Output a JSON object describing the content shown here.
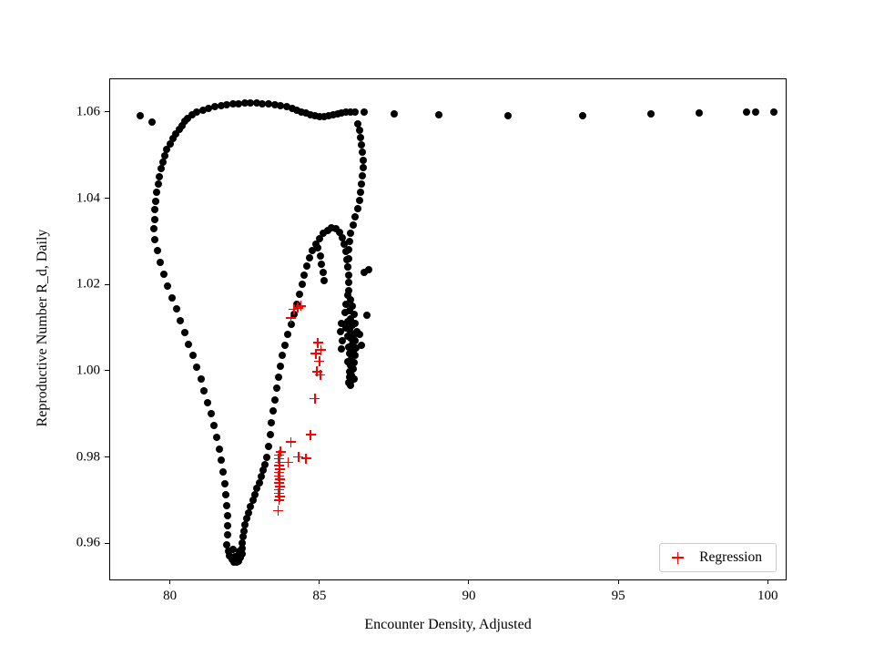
{
  "chart_data": {
    "type": "scatter",
    "title": "",
    "xlabel": "Encounter Density, Adjusted",
    "ylabel": "Reproductive Number R_d, Daily",
    "xlim": [
      78.0,
      100.6
    ],
    "ylim": [
      0.9516,
      1.0676
    ],
    "xticks": [
      80,
      85,
      90,
      95,
      100
    ],
    "yticks": [
      0.96,
      0.98,
      1.0,
      1.02,
      1.04,
      1.06
    ],
    "grid": false,
    "colors": {
      "observations": "#000000",
      "regression": "#ff0000"
    },
    "legend": {
      "position": "lower right",
      "entries": [
        {
          "label": "Regression",
          "marker": "plus",
          "color": "#ff0000"
        }
      ]
    },
    "series": [
      {
        "name": "observations",
        "marker": "circle",
        "color": "#000000",
        "in_legend": false,
        "points": [
          [
            100.2,
            1.0601
          ],
          [
            99.6,
            1.06
          ],
          [
            99.3,
            1.06
          ],
          [
            97.7,
            1.0597
          ],
          [
            96.1,
            1.0595
          ],
          [
            93.8,
            1.0592
          ],
          [
            91.3,
            1.0591
          ],
          [
            89.0,
            1.0593
          ],
          [
            87.5,
            1.0596
          ],
          [
            86.5,
            1.0599
          ],
          [
            86.2,
            1.0601
          ],
          [
            86.05,
            1.06
          ],
          [
            85.9,
            1.0599
          ],
          [
            85.75,
            1.0597
          ],
          [
            85.6,
            1.0595
          ],
          [
            85.45,
            1.0593
          ],
          [
            85.3,
            1.0591
          ],
          [
            85.15,
            1.059
          ],
          [
            85.0,
            1.0589
          ],
          [
            84.85,
            1.0591
          ],
          [
            84.7,
            1.0593
          ],
          [
            84.55,
            1.0597
          ],
          [
            84.4,
            1.0601
          ],
          [
            84.25,
            1.0605
          ],
          [
            84.1,
            1.0608
          ],
          [
            83.9,
            1.0612
          ],
          [
            83.7,
            1.0615
          ],
          [
            83.5,
            1.0617
          ],
          [
            83.3,
            1.0619
          ],
          [
            83.1,
            1.062
          ],
          [
            82.9,
            1.0621
          ],
          [
            82.7,
            1.0621
          ],
          [
            82.5,
            1.0621
          ],
          [
            82.3,
            1.062
          ],
          [
            82.1,
            1.0619
          ],
          [
            81.9,
            1.0617
          ],
          [
            81.7,
            1.0615
          ],
          [
            81.5,
            1.0612
          ],
          [
            81.3,
            1.0608
          ],
          [
            81.1,
            1.0604
          ],
          [
            80.9,
            1.0599
          ],
          [
            80.75,
            1.0593
          ],
          [
            80.6,
            1.0586
          ],
          [
            80.5,
            1.0578
          ],
          [
            80.4,
            1.0569
          ],
          [
            79.0,
            1.0592
          ],
          [
            79.4,
            1.0576
          ],
          [
            80.3,
            1.0559
          ],
          [
            80.2,
            1.0549
          ],
          [
            80.1,
            1.0538
          ],
          [
            80.0,
            1.0526
          ],
          [
            79.9,
            1.0513
          ],
          [
            79.82,
            1.0499
          ],
          [
            79.75,
            1.0484
          ],
          [
            79.7,
            1.0468
          ],
          [
            79.65,
            1.0451
          ],
          [
            79.6,
            1.0433
          ],
          [
            79.56,
            1.0414
          ],
          [
            79.53,
            1.0394
          ],
          [
            79.5,
            1.0373
          ],
          [
            79.48,
            1.0351
          ],
          [
            79.47,
            1.0329
          ],
          [
            79.5,
            1.0305
          ],
          [
            79.58,
            1.0278
          ],
          [
            79.68,
            1.0251
          ],
          [
            79.8,
            1.0224
          ],
          [
            79.93,
            1.0197
          ],
          [
            80.07,
            1.017
          ],
          [
            80.21,
            1.0143
          ],
          [
            80.35,
            1.0116
          ],
          [
            80.49,
            1.0089
          ],
          [
            80.63,
            1.0062
          ],
          [
            80.77,
            1.0035
          ],
          [
            80.9,
            1.0008
          ],
          [
            81.03,
            0.9981
          ],
          [
            81.15,
            0.9954
          ],
          [
            81.27,
            0.9927
          ],
          [
            81.38,
            0.99
          ],
          [
            81.48,
            0.9873
          ],
          [
            81.57,
            0.9846
          ],
          [
            81.65,
            0.9819
          ],
          [
            81.72,
            0.9792
          ],
          [
            81.78,
            0.9765
          ],
          [
            81.83,
            0.9739
          ],
          [
            81.87,
            0.9713
          ],
          [
            81.9,
            0.9688
          ],
          [
            81.92,
            0.9664
          ],
          [
            81.93,
            0.9641
          ],
          [
            81.92,
            0.9619
          ],
          [
            81.9,
            0.9596
          ],
          [
            81.95,
            0.9582
          ],
          [
            82.0,
            0.9571
          ],
          [
            82.07,
            0.9562
          ],
          [
            82.15,
            0.9557
          ],
          [
            82.23,
            0.9556
          ],
          [
            82.3,
            0.9559
          ],
          [
            82.36,
            0.9566
          ],
          [
            82.4,
            0.9576
          ],
          [
            82.42,
            0.9588
          ],
          [
            82.25,
            0.9572
          ],
          [
            82.12,
            0.9585
          ],
          [
            82.33,
            0.9582
          ],
          [
            82.18,
            0.9568
          ],
          [
            82.43,
            0.9601
          ],
          [
            82.45,
            0.9615
          ],
          [
            82.48,
            0.9629
          ],
          [
            82.52,
            0.9643
          ],
          [
            82.57,
            0.9657
          ],
          [
            82.63,
            0.9671
          ],
          [
            82.7,
            0.9685
          ],
          [
            82.77,
            0.9699
          ],
          [
            82.84,
            0.9713
          ],
          [
            82.91,
            0.9727
          ],
          [
            82.98,
            0.9741
          ],
          [
            83.05,
            0.9755
          ],
          [
            83.11,
            0.9769
          ],
          [
            83.17,
            0.9783
          ],
          [
            83.23,
            0.98
          ],
          [
            83.29,
            0.9825
          ],
          [
            83.35,
            0.9852
          ],
          [
            83.4,
            0.9879
          ],
          [
            83.45,
            0.9906
          ],
          [
            83.5,
            0.9933
          ],
          [
            83.56,
            0.996
          ],
          [
            83.62,
            0.9986
          ],
          [
            83.69,
            1.0011
          ],
          [
            83.77,
            1.0036
          ],
          [
            83.86,
            1.006
          ],
          [
            83.95,
            1.0084
          ],
          [
            84.05,
            1.0108
          ],
          [
            84.15,
            1.0131
          ],
          [
            84.25,
            1.0154
          ],
          [
            84.34,
            1.0177
          ],
          [
            84.42,
            1.02
          ],
          [
            84.5,
            1.0222
          ],
          [
            84.58,
            1.0243
          ],
          [
            84.67,
            1.0262
          ],
          [
            84.77,
            1.0279
          ],
          [
            84.88,
            1.0294
          ],
          [
            85.0,
            1.0307
          ],
          [
            85.13,
            1.0318
          ],
          [
            85.27,
            1.0326
          ],
          [
            85.41,
            1.0331
          ],
          [
            85.55,
            1.033
          ],
          [
            85.67,
            1.0322
          ],
          [
            85.76,
            1.0309
          ],
          [
            85.83,
            1.0293
          ],
          [
            85.88,
            1.0276
          ],
          [
            85.92,
            1.0258
          ],
          [
            85.95,
            1.024
          ],
          [
            85.97,
            1.0222
          ],
          [
            85.98,
            1.0204
          ],
          [
            85.98,
            1.0186
          ],
          [
            84.95,
            1.0285
          ],
          [
            85.02,
            1.0266
          ],
          [
            85.08,
            1.0247
          ],
          [
            85.13,
            1.0228
          ],
          [
            85.17,
            1.0209
          ],
          [
            86.28,
            1.0572
          ],
          [
            86.33,
            1.0557
          ],
          [
            86.38,
            1.0541
          ],
          [
            86.42,
            1.0524
          ],
          [
            86.45,
            1.0507
          ],
          [
            86.46,
            1.0489
          ],
          [
            86.46,
            1.0471
          ],
          [
            86.45,
            1.0453
          ],
          [
            86.42,
            1.0434
          ],
          [
            86.38,
            1.0415
          ],
          [
            86.33,
            1.0396
          ],
          [
            86.27,
            1.0377
          ],
          [
            86.2,
            1.0358
          ],
          [
            86.12,
            1.0339
          ],
          [
            86.05,
            1.032
          ],
          [
            86.02,
            1.03
          ],
          [
            85.99,
            1.028
          ],
          [
            85.97,
            1.026
          ],
          [
            85.96,
            1.024
          ],
          [
            86.5,
            1.0228
          ],
          [
            86.66,
            1.0234
          ],
          [
            86.6,
            1.0128
          ],
          [
            85.95,
            1.0175
          ],
          [
            86.05,
            1.0165
          ],
          [
            85.9,
            1.0155
          ],
          [
            86.1,
            1.015
          ],
          [
            86.0,
            1.014
          ],
          [
            85.85,
            1.0135
          ],
          [
            86.15,
            1.013
          ],
          [
            86.05,
            1.012
          ],
          [
            85.95,
            1.0115
          ],
          [
            86.2,
            1.011
          ],
          [
            86.1,
            1.0105
          ],
          [
            85.9,
            1.01
          ],
          [
            86.0,
            1.0095
          ],
          [
            86.25,
            1.009
          ],
          [
            86.15,
            1.0085
          ],
          [
            85.95,
            1.008
          ],
          [
            86.05,
            1.0075
          ],
          [
            86.2,
            1.007
          ],
          [
            86.1,
            1.0062
          ],
          [
            85.98,
            1.0055
          ],
          [
            86.22,
            1.0052
          ],
          [
            86.12,
            1.0045
          ],
          [
            86.02,
            1.004
          ],
          [
            86.18,
            1.0035
          ],
          [
            86.08,
            1.0028
          ],
          [
            85.95,
            1.0022
          ],
          [
            86.15,
            1.0018
          ],
          [
            86.05,
            1.0012
          ],
          [
            86.12,
            1.0005
          ],
          [
            86.0,
            0.9998
          ],
          [
            86.08,
            0.999
          ],
          [
            86.15,
            0.9982
          ],
          [
            86.05,
            0.9975
          ],
          [
            85.75,
            1.011
          ],
          [
            85.7,
            1.009
          ],
          [
            85.78,
            1.007
          ],
          [
            85.72,
            1.005
          ],
          [
            86.35,
            1.0085
          ],
          [
            86.4,
            1.006
          ],
          [
            86.02,
            0.9985
          ],
          [
            86.07,
            0.9978
          ],
          [
            85.98,
            0.9972
          ],
          [
            86.05,
            0.9966
          ]
        ]
      },
      {
        "name": "Regression",
        "marker": "plus",
        "color": "#ff0000",
        "in_legend": true,
        "points": [
          [
            84.15,
            1.0143
          ],
          [
            84.38,
            1.015
          ],
          [
            84.28,
            1.0146
          ],
          [
            84.05,
            1.0122
          ],
          [
            84.95,
            1.0065
          ],
          [
            85.05,
            1.0048
          ],
          [
            84.88,
            1.004
          ],
          [
            85.0,
            1.0022
          ],
          [
            84.92,
            0.9998
          ],
          [
            85.03,
            0.999
          ],
          [
            84.85,
            0.9935
          ],
          [
            84.7,
            0.9852
          ],
          [
            84.05,
            0.9835
          ],
          [
            84.3,
            0.98
          ],
          [
            84.55,
            0.9797
          ],
          [
            83.95,
            0.9788
          ],
          [
            83.65,
            0.97
          ],
          [
            83.67,
            0.9708
          ],
          [
            83.64,
            0.9716
          ],
          [
            83.66,
            0.9724
          ],
          [
            83.68,
            0.9732
          ],
          [
            83.65,
            0.974
          ],
          [
            83.67,
            0.9748
          ],
          [
            83.64,
            0.9756
          ],
          [
            83.66,
            0.9764
          ],
          [
            83.68,
            0.9772
          ],
          [
            83.65,
            0.978
          ],
          [
            83.67,
            0.9788
          ],
          [
            83.64,
            0.9796
          ],
          [
            83.66,
            0.9804
          ],
          [
            83.7,
            0.9812
          ],
          [
            83.62,
            0.9675
          ]
        ]
      }
    ]
  }
}
